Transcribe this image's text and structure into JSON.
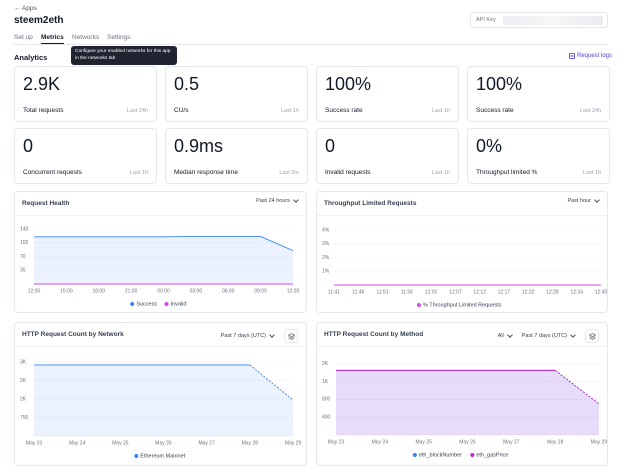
{
  "header": {
    "back": "Apps",
    "title": "steem2eth",
    "api_key_label": "API Key"
  },
  "tabs": [
    "Set up",
    "Metrics",
    "Networks",
    "Settings"
  ],
  "active_tab": 1,
  "tooltip": "Configure your enabled networks for this app in the networks tab",
  "section": {
    "title": "Analytics",
    "link": "Request logs"
  },
  "stats": [
    {
      "value": "2.9K",
      "label": "Total requests",
      "period": "Last 24h"
    },
    {
      "value": "0.5",
      "label": "CU/s",
      "period": "Last 1h"
    },
    {
      "value": "100%",
      "label": "Success rate",
      "period": "Last 1h"
    },
    {
      "value": "100%",
      "label": "Success rate",
      "period": "Last 24h"
    },
    {
      "value": "0",
      "label": "Concurrent requests",
      "period": "Last 1h"
    },
    {
      "value": "0.9ms",
      "label": "Median response time",
      "period": "Last 5m"
    },
    {
      "value": "0",
      "label": "Invalid requests",
      "period": "Last 1h"
    },
    {
      "value": "0%",
      "label": "Throughput limited %",
      "period": "Last 1h"
    }
  ],
  "chart_data": [
    {
      "type": "area",
      "title": "Request Health",
      "controls": [
        "Past 24 hours"
      ],
      "categories": [
        "12:00",
        "15:00",
        "18:00",
        "21:00",
        "00:00",
        "03:00",
        "06:00",
        "09:00",
        "12:00"
      ],
      "series": [
        {
          "name": "Success",
          "color": "#3b82f6",
          "values": [
            120,
            120,
            120,
            120,
            120,
            121,
            121,
            121,
            85
          ]
        },
        {
          "name": "Invalid",
          "color": "#d946ef",
          "values": [
            0,
            0,
            0,
            0,
            0,
            0,
            0,
            0,
            0
          ]
        }
      ],
      "ylim": [
        0,
        140
      ],
      "yticks": [
        35,
        70,
        105,
        140
      ],
      "grid": true,
      "legend": "bottom"
    },
    {
      "type": "line",
      "title": "Throughput Limited Requests",
      "controls": [
        "Past hour"
      ],
      "categories": [
        "11:41",
        "11:46",
        "11:51",
        "11:56",
        "12:01",
        "12:07",
        "12:12",
        "12:17",
        "12:22",
        "12:28",
        "12:34",
        "12:40"
      ],
      "series": [
        {
          "name": "% Throughput Limited Requests",
          "color": "#d946ef",
          "values": [
            0,
            0,
            0,
            0,
            0,
            0,
            0,
            0,
            0,
            0,
            0,
            0
          ]
        }
      ],
      "ylim": [
        0,
        4
      ],
      "yticks": [
        {
          "value": 1,
          "label": "1%"
        },
        {
          "value": 2,
          "label": "2%"
        },
        {
          "value": 3,
          "label": "3%"
        },
        {
          "value": 4,
          "label": "4%"
        }
      ],
      "grid": true,
      "legend": "bottom"
    },
    {
      "type": "area",
      "title": "HTTP Request Count by Network",
      "controls": [
        "Past 7 days (UTC)"
      ],
      "stack_toggle": true,
      "categories": [
        "May 23",
        "May 24",
        "May 25",
        "May 26",
        "May 27",
        "May 28",
        "May 29"
      ],
      "series": [
        {
          "name": "Ethereum Mainnet",
          "color": "#3b82f6",
          "values": [
            2880,
            2880,
            2880,
            2880,
            2880,
            2880,
            1460
          ]
        }
      ],
      "ylim": [
        0,
        3200
      ],
      "yticks": [
        {
          "value": 750,
          "label": "750"
        },
        {
          "value": 1500,
          "label": "2K"
        },
        {
          "value": 2250,
          "label": "2K"
        },
        {
          "value": 3000,
          "label": "3K"
        }
      ],
      "grid": true,
      "partial_last": true,
      "legend": "bottom"
    },
    {
      "type": "area",
      "title": "HTTP Request Count by Method",
      "controls": [
        "All",
        "Past 7 days (UTC)"
      ],
      "stack_toggle": true,
      "categories": [
        "May 23",
        "May 24",
        "May 25",
        "May 26",
        "May 27",
        "May 28",
        "May 29"
      ],
      "series": [
        {
          "name": "eth_blockNumber",
          "color": "#3b82f6",
          "values": [
            1450,
            1450,
            1450,
            1450,
            1450,
            1450,
            700
          ]
        },
        {
          "name": "eth_gasPrice",
          "color": "#c026d3",
          "values": [
            1450,
            1450,
            1450,
            1450,
            1450,
            1450,
            700
          ]
        }
      ],
      "ylim": [
        0,
        1750
      ],
      "yticks": [
        400,
        800,
        {
          "value": 1200,
          "label": "1K"
        },
        {
          "value": 1600,
          "label": "2K"
        }
      ],
      "grid": true,
      "partial_last": true,
      "legend": "bottom"
    }
  ]
}
